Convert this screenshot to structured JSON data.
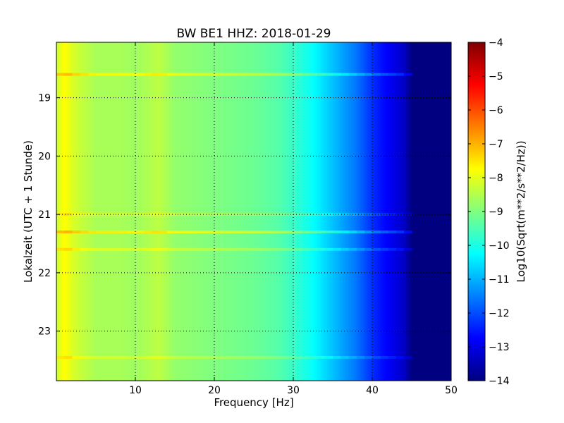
{
  "chart_data": {
    "type": "heatmap",
    "title": "BW BE1 HHZ: 2018-01-29",
    "xlabel": "Frequency [Hz]",
    "ylabel": "Lokalzeit (UTC + 1 Stunde)",
    "xlim": [
      0,
      50
    ],
    "ylim": [
      18.05,
      23.85
    ],
    "y_inverted": true,
    "x_ticks": [
      10,
      20,
      30,
      40,
      50
    ],
    "y_ticks": [
      19,
      20,
      21,
      22,
      23
    ],
    "grid": true,
    "colormap": "jet",
    "colorbar": {
      "label": "Log10(Sqrt(m**2/s**2/Hz))",
      "range": [
        -14,
        -4
      ],
      "ticks": [
        -4,
        -5,
        -6,
        -7,
        -8,
        -9,
        -10,
        -11,
        -12,
        -13,
        -14
      ]
    },
    "frequency_profile": {
      "x": [
        0,
        1,
        2,
        3,
        5,
        8,
        10,
        13,
        15,
        20,
        25,
        28,
        30,
        32,
        34,
        36,
        38,
        40,
        42,
        44,
        45,
        50
      ],
      "values": [
        -8.3,
        -7.7,
        -8.1,
        -8.3,
        -8.6,
        -8.6,
        -8.7,
        -8.4,
        -8.8,
        -9.0,
        -9.2,
        -9.4,
        -9.7,
        -10.1,
        -10.6,
        -11.1,
        -11.6,
        -12.3,
        -12.8,
        -13.3,
        -14,
        -14
      ]
    },
    "bright_bands": [
      {
        "time": 18.6,
        "delta": 0.9
      },
      {
        "time": 21.0,
        "delta": 0.5
      },
      {
        "time": 21.3,
        "delta": 1.0
      },
      {
        "time": 21.6,
        "delta": 0.6
      },
      {
        "time": 23.45,
        "delta": 0.5
      }
    ]
  }
}
